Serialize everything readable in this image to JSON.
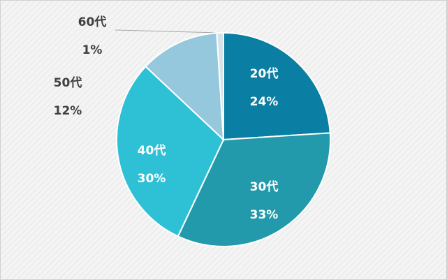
{
  "chart_data": {
    "type": "pie",
    "categories": [
      "20代",
      "30代",
      "40代",
      "50代",
      "60代"
    ],
    "values": [
      24,
      33,
      30,
      12,
      1
    ],
    "value_labels": [
      "24%",
      "33%",
      "30%",
      "12%",
      "1%"
    ],
    "colors": [
      "#0b7fa3",
      "#229aab",
      "#2ec1d6",
      "#96c8dd",
      "#d5e2e8"
    ]
  }
}
